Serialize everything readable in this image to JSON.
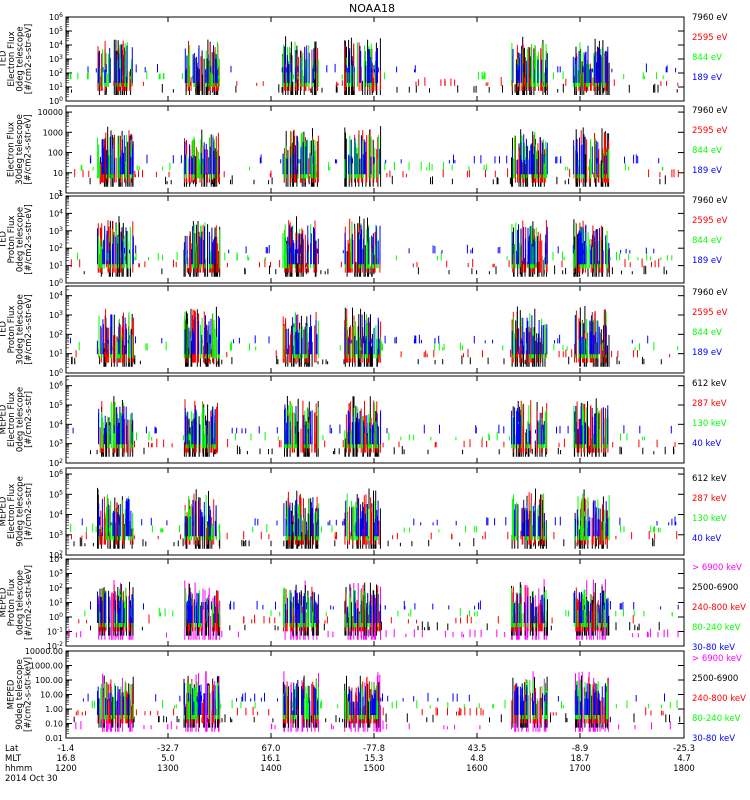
{
  "title": "NOAA18",
  "colors": {
    "black": "#000000",
    "red": "#ff0000",
    "green": "#00ff00",
    "blue": "#0000ff",
    "magenta": "#ff00ff"
  },
  "footer": {
    "row_labels": [
      "Lat",
      "MLT",
      "hhmm",
      "2014 Oct 30"
    ],
    "ticks": [
      {
        "lat": "-1.4",
        "mlt": "16.8",
        "hhmm": "1200"
      },
      {
        "lat": "-32.7",
        "mlt": "5.0",
        "hhmm": "1300"
      },
      {
        "lat": "67.0",
        "mlt": "16.1",
        "hhmm": "1400"
      },
      {
        "lat": "-77.8",
        "mlt": "15.3",
        "hhmm": "1500"
      },
      {
        "lat": "43.5",
        "mlt": "4.8",
        "hhmm": "1600"
      },
      {
        "lat": "-8.9",
        "mlt": "18.7",
        "hhmm": "1700"
      },
      {
        "lat": "-25.3",
        "mlt": "4.7",
        "hhmm": "1800"
      }
    ]
  },
  "chart_data": [
    {
      "type": "scatter",
      "scale": "log",
      "ylabel_lines": [
        "TED",
        "Electron Flux",
        "0deg telescope",
        "[#/cm2-s-str-eV]"
      ],
      "ytick_labels": [
        "10^0",
        "10^1",
        "10^2",
        "10^3",
        "10^4",
        "10^5",
        "10^6"
      ],
      "ylim_exp": [
        0,
        6
      ],
      "series": [
        {
          "name": "7960 eV",
          "color": "#000000"
        },
        {
          "name": "2595 eV",
          "color": "#ff0000"
        },
        {
          "name": "844 eV",
          "color": "#00ff00"
        },
        {
          "name": "189 eV",
          "color": "#0000ff"
        }
      ]
    },
    {
      "type": "scatter",
      "scale": "log",
      "ylabel_lines": [
        "Electron Flux",
        "30deg telescope",
        "[#/cm2-s-str-eV]"
      ],
      "ytick_labels": [
        "1",
        "10",
        "100",
        "1000",
        "10000"
      ],
      "ylim_exp": [
        0,
        4.3
      ],
      "series": [
        {
          "name": "7960 eV",
          "color": "#000000"
        },
        {
          "name": "2595 eV",
          "color": "#ff0000"
        },
        {
          "name": "844 eV",
          "color": "#00ff00"
        },
        {
          "name": "189 eV",
          "color": "#0000ff"
        }
      ]
    },
    {
      "type": "scatter",
      "scale": "log",
      "ylabel_lines": [
        "TED",
        "Proton Flux",
        "0deg telescope",
        "[#/cm2-s-str-eV]"
      ],
      "ytick_labels": [
        "10^0",
        "10^1",
        "10^2",
        "10^3",
        "10^4",
        "10^5"
      ],
      "ylim_exp": [
        0,
        5
      ],
      "series": [
        {
          "name": "7960 eV",
          "color": "#000000"
        },
        {
          "name": "2595 eV",
          "color": "#ff0000"
        },
        {
          "name": "844 eV",
          "color": "#00ff00"
        },
        {
          "name": "189 eV",
          "color": "#0000ff"
        }
      ]
    },
    {
      "type": "scatter",
      "scale": "log",
      "ylabel_lines": [
        "TED",
        "Proton Flux",
        "30deg telescope",
        "[#/cm2-s-str-eV]"
      ],
      "ytick_labels": [
        "10^0",
        "10^1",
        "10^2",
        "10^3",
        "10^4"
      ],
      "ylim_exp": [
        0,
        4.5
      ],
      "series": [
        {
          "name": "7960 eV",
          "color": "#000000"
        },
        {
          "name": "2595 eV",
          "color": "#ff0000"
        },
        {
          "name": "844 eV",
          "color": "#00ff00"
        },
        {
          "name": "189 eV",
          "color": "#0000ff"
        }
      ]
    },
    {
      "type": "scatter",
      "scale": "log",
      "ylabel_lines": [
        "MEPED",
        "Electron Flux",
        "0deg telescope",
        "[#/cm2-s-str]"
      ],
      "ytick_labels": [
        "10^2",
        "10^3",
        "10^4",
        "10^5",
        "10^6"
      ],
      "ylim_exp": [
        2,
        6.5
      ],
      "series": [
        {
          "name": "612 keV",
          "color": "#000000"
        },
        {
          "name": "287 keV",
          "color": "#ff0000"
        },
        {
          "name": "130 keV",
          "color": "#00ff00"
        },
        {
          "name": "40 keV",
          "color": "#0000ff"
        }
      ]
    },
    {
      "type": "scatter",
      "scale": "log",
      "ylabel_lines": [
        "MEPED",
        "Electron Flux",
        "90deg telescope",
        "[#/cm2-s-str]"
      ],
      "ytick_labels": [
        "10^2",
        "10^3",
        "10^4",
        "10^5",
        "10^6"
      ],
      "ylim_exp": [
        2,
        6.3
      ],
      "series": [
        {
          "name": "612 keV",
          "color": "#000000"
        },
        {
          "name": "287 keV",
          "color": "#ff0000"
        },
        {
          "name": "130 keV",
          "color": "#00ff00"
        },
        {
          "name": "40 keV",
          "color": "#0000ff"
        }
      ]
    },
    {
      "type": "scatter",
      "scale": "log",
      "ylabel_lines": [
        "MEPED",
        "Proton Flux",
        "0deg telescope",
        "[#/cm2-s-str-keV]"
      ],
      "ytick_labels": [
        "10^-2",
        "10^-1",
        "10^0",
        "10^1",
        "10^2",
        "10^3",
        "10^4"
      ],
      "ylim_exp": [
        -2,
        4
      ],
      "series": [
        {
          "name": "> 6900 keV",
          "color": "#ff00ff"
        },
        {
          "name": "2500-6900",
          "color": "#000000"
        },
        {
          "name": "240-800 keV",
          "color": "#ff0000"
        },
        {
          "name": "80-240 keV",
          "color": "#00ff00"
        },
        {
          "name": "30-80 keV",
          "color": "#0000ff"
        }
      ]
    },
    {
      "type": "scatter",
      "scale": "log",
      "ylabel_lines": [
        "MEPED",
        "90deg telescope",
        "[#/cm2-s-str-keV]"
      ],
      "ytick_labels": [
        "0.01",
        "0.10",
        "1.00",
        "10.00",
        "100.00",
        "1000.00",
        "10000.00"
      ],
      "ylim_exp": [
        -2,
        4
      ],
      "series": [
        {
          "name": "> 6900 keV",
          "color": "#ff00ff"
        },
        {
          "name": "2500-6900",
          "color": "#000000"
        },
        {
          "name": "240-800 keV",
          "color": "#ff0000"
        },
        {
          "name": "80-240 keV",
          "color": "#00ff00"
        },
        {
          "name": "30-80 keV",
          "color": "#0000ff"
        }
      ]
    }
  ]
}
